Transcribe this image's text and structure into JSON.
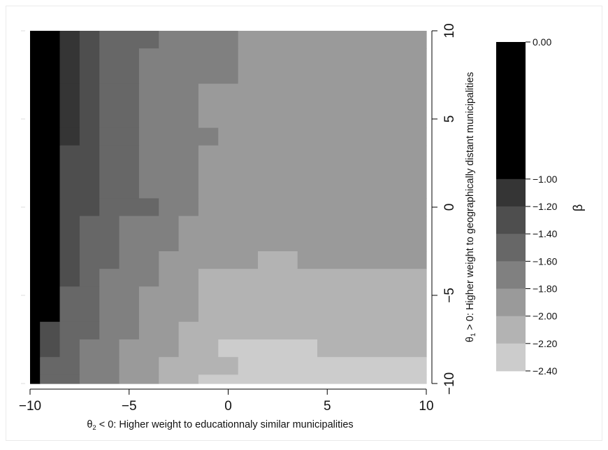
{
  "chart_data": {
    "type": "heatmap",
    "xlabel_prefix": "θ",
    "xlabel_sub": "2",
    "xlabel_suffix": " < 0: Higher weight to educationnaly similar municipalities",
    "ylabel_prefix": "θ",
    "ylabel_sub": "1",
    "ylabel_suffix": " > 0: Higher weight to geographically distant municipalities",
    "colorbar_label": "β",
    "x_range": [
      -10,
      10
    ],
    "y_range": [
      -10,
      10
    ],
    "x_ticks": [
      "−10",
      "−5",
      "0",
      "5",
      "10"
    ],
    "x_tick_values": [
      -10,
      -5,
      0,
      5,
      10
    ],
    "y_ticks": [
      "−10",
      "−5",
      "0",
      "5",
      "10"
    ],
    "y_tick_values": [
      -10,
      -5,
      0,
      5,
      10
    ],
    "grid": false,
    "legend": "colorbar right",
    "color_scale": [
      {
        "label": "0.00",
        "lower": -1.0,
        "upper": 0.0,
        "color": "#1b1b1b"
      },
      {
        "label": "−1.00",
        "lower": -1.2,
        "upper": -1.0,
        "color": "#353535"
      },
      {
        "label": "−1.20",
        "lower": -1.4,
        "upper": -1.2,
        "color": "#4e4e4e"
      },
      {
        "label": "−1.40",
        "lower": -1.6,
        "upper": -1.4,
        "color": "#676767"
      },
      {
        "label": "−1.60",
        "lower": -1.8,
        "upper": -1.6,
        "color": "#808080"
      },
      {
        "label": "−1.80",
        "lower": -2.0,
        "upper": -1.8,
        "color": "#9a9a9a"
      },
      {
        "label": "−2.00",
        "lower": -2.2,
        "upper": -2.0,
        "color": "#b3b3b3"
      },
      {
        "label": "−2.20",
        "lower": -2.4,
        "upper": -2.2,
        "color": "#cccccc"
      },
      {
        "label": "−2.40",
        "lower": null,
        "upper": null,
        "color": null
      }
    ],
    "legend_color_values": [
      -0.5,
      -1.1,
      -1.3,
      -1.5,
      -1.7,
      -1.9,
      -2.1,
      -2.3
    ],
    "column_x_values": [
      -10.0,
      -9.5,
      -8.5,
      -7.5,
      -6.5,
      -5.5,
      -4.5,
      -3.5,
      -2.5,
      -1.5,
      -0.5,
      0.5,
      1.5,
      2.5,
      3.5,
      4.5,
      5.5,
      6.5,
      7.5,
      8.5,
      9.5,
      10.0
    ],
    "black_value": -0.1,
    "regions": [
      {
        "y": [
          9,
          10
        ],
        "cells": [
          [
            -10,
            -8.5,
            -0.1
          ],
          [
            -8.5,
            -7.5,
            -1.1
          ],
          [
            -7.5,
            -6.5,
            -1.3
          ],
          [
            -6.5,
            -3.5,
            -1.5
          ],
          [
            -3.5,
            0.5,
            -1.7
          ],
          [
            0.5,
            10,
            -1.9
          ]
        ]
      },
      {
        "y": [
          7,
          9
        ],
        "cells": [
          [
            -10,
            -8.5,
            -0.1
          ],
          [
            -8.5,
            -7.5,
            -1.1
          ],
          [
            -7.5,
            -6.5,
            -1.3
          ],
          [
            -6.5,
            -4.5,
            -1.5
          ],
          [
            -4.5,
            0.5,
            -1.7
          ],
          [
            0.5,
            10,
            -1.9
          ]
        ]
      },
      {
        "y": [
          4.5,
          7
        ],
        "cells": [
          [
            -10,
            -8.5,
            -0.1
          ],
          [
            -8.5,
            -7.5,
            -1.1
          ],
          [
            -7.5,
            -6.5,
            -1.3
          ],
          [
            -6.5,
            -4.5,
            -1.5
          ],
          [
            -4.5,
            -1.5,
            -1.7
          ],
          [
            -1.5,
            10,
            -1.9
          ]
        ]
      },
      {
        "y": [
          3.5,
          4.5
        ],
        "cells": [
          [
            -10,
            -8.5,
            -0.1
          ],
          [
            -8.5,
            -7.5,
            -1.1
          ],
          [
            -7.5,
            -6.5,
            -1.3
          ],
          [
            -6.5,
            -4.5,
            -1.5
          ],
          [
            -4.5,
            -0.5,
            -1.7
          ],
          [
            -0.5,
            10,
            -1.9
          ]
        ]
      },
      {
        "y": [
          0.5,
          3.5
        ],
        "cells": [
          [
            -10,
            -8.5,
            -0.1
          ],
          [
            -8.5,
            -6.5,
            -1.3
          ],
          [
            -6.5,
            -4.5,
            -1.5
          ],
          [
            -4.5,
            -1.5,
            -1.7
          ],
          [
            -1.5,
            10,
            -1.9
          ]
        ]
      },
      {
        "y": [
          -0.5,
          0.5
        ],
        "cells": [
          [
            -10,
            -8.5,
            -0.1
          ],
          [
            -8.5,
            -6.5,
            -1.3
          ],
          [
            -6.5,
            -3.5,
            -1.5
          ],
          [
            -3.5,
            -1.5,
            -1.7
          ],
          [
            -1.5,
            10,
            -1.9
          ]
        ]
      },
      {
        "y": [
          -2.5,
          -0.5
        ],
        "cells": [
          [
            -10,
            -8.5,
            -0.1
          ],
          [
            -8.5,
            -7.5,
            -1.3
          ],
          [
            -7.5,
            -5.5,
            -1.5
          ],
          [
            -5.5,
            -2.5,
            -1.7
          ],
          [
            -2.5,
            10,
            -1.9
          ]
        ]
      },
      {
        "y": [
          -3.5,
          -2.5
        ],
        "cells": [
          [
            -10,
            -8.5,
            -0.1
          ],
          [
            -8.5,
            -7.5,
            -1.3
          ],
          [
            -7.5,
            -5.5,
            -1.5
          ],
          [
            -5.5,
            -3.5,
            -1.7
          ],
          [
            -3.5,
            1.5,
            -1.9
          ],
          [
            1.5,
            3.5,
            -2.1
          ],
          [
            3.5,
            10,
            -1.9
          ]
        ]
      },
      {
        "y": [
          -4.5,
          -3.5
        ],
        "cells": [
          [
            -10,
            -8.5,
            -0.1
          ],
          [
            -8.5,
            -7.5,
            -1.3
          ],
          [
            -7.5,
            -6.5,
            -1.5
          ],
          [
            -6.5,
            -3.5,
            -1.7
          ],
          [
            -3.5,
            -1.5,
            -1.9
          ],
          [
            -1.5,
            10,
            -2.1
          ]
        ]
      },
      {
        "y": [
          -6.5,
          -4.5
        ],
        "cells": [
          [
            -10,
            -8.5,
            -0.1
          ],
          [
            -8.5,
            -6.5,
            -1.5
          ],
          [
            -6.5,
            -4.5,
            -1.7
          ],
          [
            -4.5,
            -1.5,
            -1.9
          ],
          [
            -1.5,
            10,
            -2.1
          ]
        ]
      },
      {
        "y": [
          -7.5,
          -6.5
        ],
        "cells": [
          [
            -10,
            -9.5,
            -0.1
          ],
          [
            -9.5,
            -8.5,
            -1.3
          ],
          [
            -8.5,
            -6.5,
            -1.5
          ],
          [
            -6.5,
            -4.5,
            -1.7
          ],
          [
            -4.5,
            -2.5,
            -1.9
          ],
          [
            -2.5,
            10,
            -2.1
          ]
        ]
      },
      {
        "y": [
          -8.5,
          -7.5
        ],
        "cells": [
          [
            -10,
            -9.5,
            -0.1
          ],
          [
            -9.5,
            -8.5,
            -1.3
          ],
          [
            -8.5,
            -7.5,
            -1.5
          ],
          [
            -7.5,
            -5.5,
            -1.7
          ],
          [
            -5.5,
            -2.5,
            -1.9
          ],
          [
            -2.5,
            -0.5,
            -2.1
          ],
          [
            -0.5,
            4.5,
            -2.3
          ],
          [
            4.5,
            10,
            -2.1
          ]
        ]
      },
      {
        "y": [
          -9.5,
          -8.5
        ],
        "cells": [
          [
            -10,
            -9.5,
            -0.1
          ],
          [
            -9.5,
            -7.5,
            -1.5
          ],
          [
            -7.5,
            -5.5,
            -1.7
          ],
          [
            -5.5,
            -3.5,
            -1.9
          ],
          [
            -3.5,
            -1.5,
            -2.1
          ],
          [
            -1.5,
            0.5,
            -2.1
          ],
          [
            0.5,
            10,
            -2.3
          ]
        ]
      },
      {
        "y": [
          -10,
          -9.5
        ],
        "cells": [
          [
            -10,
            -9.5,
            -0.1
          ],
          [
            -9.5,
            -7.5,
            -1.5
          ],
          [
            -7.5,
            -5.5,
            -1.7
          ],
          [
            -5.5,
            -3.5,
            -1.9
          ],
          [
            -3.5,
            -1.5,
            -2.1
          ],
          [
            -1.5,
            10,
            -2.3
          ]
        ]
      }
    ]
  }
}
